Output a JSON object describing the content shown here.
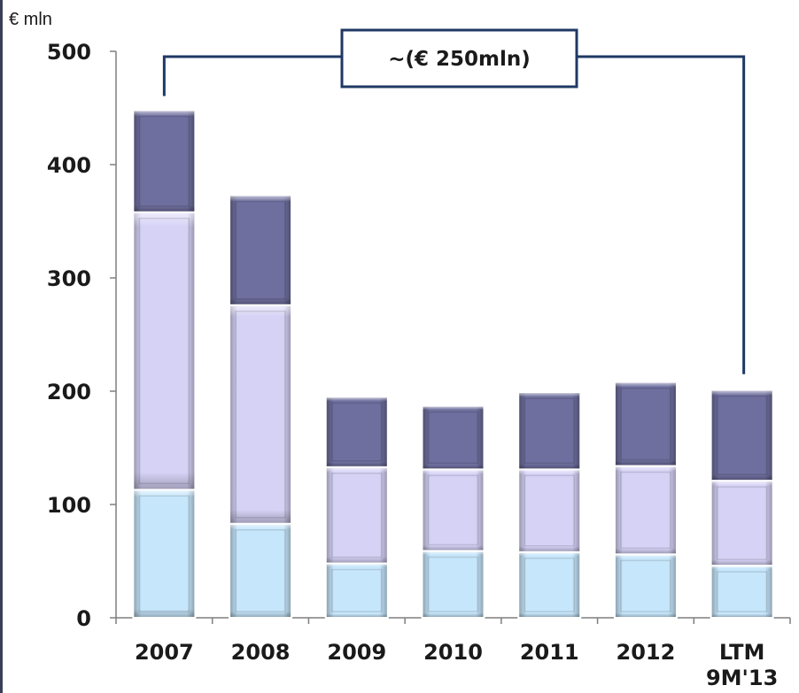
{
  "chart_data": {
    "type": "bar",
    "stacked": true,
    "unit_label": "€ mln",
    "categories": [
      [
        "2007"
      ],
      [
        "2008"
      ],
      [
        "2009"
      ],
      [
        "2010"
      ],
      [
        "2011"
      ],
      [
        "2012"
      ],
      [
        "LTM",
        "9M'13"
      ]
    ],
    "series": [
      {
        "color": "#c6e6fb",
        "values": [
          113,
          83,
          48,
          59,
          58,
          56,
          46
        ]
      },
      {
        "color": "#d6d2f6",
        "values": [
          245,
          193,
          85,
          72,
          73,
          78,
          75
        ]
      },
      {
        "color": "#6f6f9f",
        "values": [
          90,
          97,
          62,
          56,
          68,
          74,
          80
        ]
      }
    ],
    "ylim": [
      0,
      500
    ],
    "yticks": [
      0,
      100,
      200,
      300,
      400,
      500
    ],
    "grid": false,
    "legend": "none",
    "annotation": {
      "text": "~(€ 250mln)",
      "from_category": "2007",
      "to_category": "LTM 9M'13",
      "color": "#1f3864"
    }
  }
}
